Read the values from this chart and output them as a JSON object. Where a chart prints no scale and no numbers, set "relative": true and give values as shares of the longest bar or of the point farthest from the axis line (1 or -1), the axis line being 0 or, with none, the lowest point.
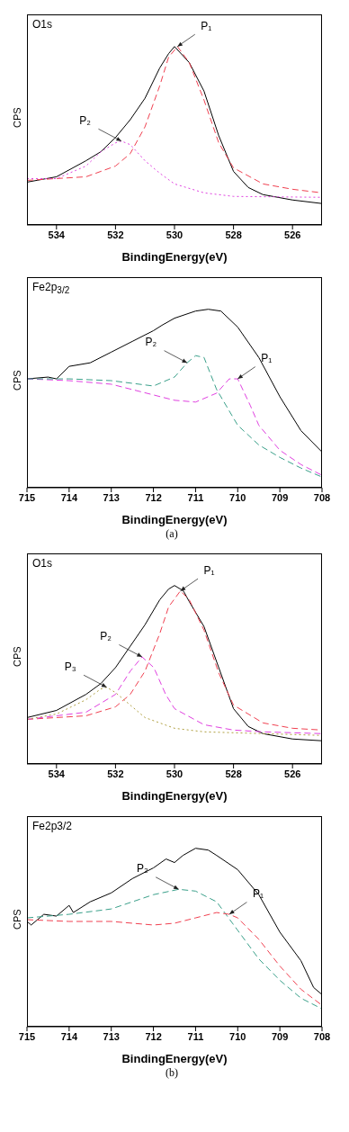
{
  "chart_data": [
    {
      "type": "line",
      "title": "O1s",
      "xlabel": "BindingEnergy(eV)",
      "ylabel": "CPS",
      "relative": true,
      "xlim": [
        535,
        525
      ],
      "xticks": [
        534,
        532,
        530,
        528,
        526
      ],
      "marker": "none",
      "legend": false,
      "grid": false,
      "series": [
        {
          "color": "#000000",
          "line_style": "solid",
          "x": [
            535,
            534,
            533,
            532.5,
            532,
            531.5,
            531,
            530.5,
            530.2,
            530,
            529.5,
            529,
            528.5,
            528,
            527.5,
            527,
            526,
            525
          ],
          "values": [
            0.24,
            0.27,
            0.36,
            0.41,
            0.49,
            0.59,
            0.71,
            0.88,
            0.96,
            1.0,
            0.91,
            0.75,
            0.5,
            0.3,
            0.21,
            0.17,
            0.14,
            0.12
          ]
        },
        {
          "color": "#f04050",
          "line_style": "dashed",
          "x": [
            535,
            533,
            532,
            531.5,
            531,
            530.5,
            530.2,
            529.9,
            529.5,
            529,
            528.5,
            528,
            527,
            526,
            525
          ],
          "values": [
            0.25,
            0.27,
            0.33,
            0.4,
            0.55,
            0.78,
            0.94,
            1.0,
            0.91,
            0.7,
            0.46,
            0.32,
            0.23,
            0.2,
            0.18
          ]
        },
        {
          "color": "#e040e0",
          "line_style": "dotted",
          "x": [
            535,
            534,
            533,
            532.5,
            532,
            531.8,
            531.5,
            531,
            530.5,
            530,
            529,
            528,
            525
          ],
          "values": [
            0.26,
            0.26,
            0.33,
            0.41,
            0.46,
            0.47,
            0.45,
            0.36,
            0.29,
            0.23,
            0.18,
            0.16,
            0.155
          ]
        }
      ],
      "annotations": [
        {
          "text": "P₁",
          "x": 529.9,
          "y": 1.0
        },
        {
          "text": "P₂",
          "x": 531.8,
          "y": 0.47
        }
      ]
    },
    {
      "type": "line",
      "title": "Fe2p$_{3/2}$",
      "xlabel": "BindingEnergy(eV)",
      "ylabel": "CPS",
      "relative": true,
      "xlim": [
        715,
        708
      ],
      "xticks": [
        715,
        714,
        713,
        712,
        711,
        710,
        709,
        708
      ],
      "marker": "none",
      "legend": false,
      "grid": false,
      "series": [
        {
          "color": "#000000",
          "line_style": "solid",
          "x": [
            715,
            714.5,
            714.3,
            714,
            713.5,
            713,
            712.5,
            712,
            711.8,
            711.5,
            711,
            710.7,
            710.4,
            710,
            709.5,
            709,
            708.5,
            708
          ],
          "values": [
            0.61,
            0.62,
            0.61,
            0.68,
            0.7,
            0.76,
            0.82,
            0.88,
            0.91,
            0.95,
            0.99,
            1.0,
            0.99,
            0.9,
            0.73,
            0.51,
            0.32,
            0.2
          ]
        },
        {
          "color": "#e040e0",
          "line_style": "dashed",
          "x": [
            715,
            714,
            713,
            712,
            711.5,
            711,
            710.5,
            710.2,
            710,
            709.7,
            709.5,
            709,
            708.5,
            708
          ],
          "values": [
            0.61,
            0.6,
            0.58,
            0.52,
            0.49,
            0.48,
            0.53,
            0.61,
            0.61,
            0.46,
            0.35,
            0.21,
            0.13,
            0.07
          ]
        },
        {
          "color": "#3aa08a",
          "line_style": "dashed",
          "x": [
            715,
            714,
            713,
            712,
            711.5,
            711.2,
            711,
            710.8,
            710.5,
            710,
            709.5,
            709,
            708.5,
            708
          ],
          "values": [
            0.61,
            0.61,
            0.6,
            0.57,
            0.62,
            0.7,
            0.74,
            0.73,
            0.55,
            0.35,
            0.24,
            0.17,
            0.11,
            0.06
          ]
        }
      ],
      "annotations": [
        {
          "text": "P₁",
          "x": 710,
          "y": 0.61
        },
        {
          "text": "P₂",
          "x": 711.2,
          "y": 0.7
        },
        "(a)"
      ]
    },
    {
      "type": "line",
      "title": "O1s",
      "xlabel": "BindingEnergy(eV)",
      "ylabel": "CPS",
      "relative": true,
      "xlim": [
        535,
        525
      ],
      "xticks": [
        534,
        532,
        530,
        528,
        526
      ],
      "marker": "none",
      "legend": false,
      "grid": false,
      "series": [
        {
          "color": "#000000",
          "line_style": "solid",
          "x": [
            535,
            534,
            533,
            532.5,
            532,
            531.5,
            531,
            530.5,
            530.2,
            530,
            529.7,
            529.5,
            529,
            528.5,
            528,
            527.5,
            527,
            526,
            525
          ],
          "values": [
            0.26,
            0.3,
            0.39,
            0.45,
            0.54,
            0.66,
            0.78,
            0.92,
            0.98,
            1.0,
            0.97,
            0.91,
            0.77,
            0.54,
            0.31,
            0.21,
            0.17,
            0.14,
            0.13
          ]
        },
        {
          "color": "#f04050",
          "line_style": "dashed",
          "x": [
            535,
            533,
            532,
            531.5,
            531,
            530.5,
            530.2,
            529.8,
            529.5,
            529,
            528.5,
            528,
            527,
            526,
            525
          ],
          "values": [
            0.25,
            0.27,
            0.32,
            0.39,
            0.52,
            0.73,
            0.88,
            0.97,
            0.92,
            0.75,
            0.51,
            0.33,
            0.23,
            0.2,
            0.19
          ]
        },
        {
          "color": "#e040e0",
          "line_style": "dashed",
          "x": [
            535,
            534,
            533,
            532,
            531.5,
            531.1,
            530.7,
            530.3,
            530,
            529,
            528,
            527,
            525
          ],
          "values": [
            0.25,
            0.27,
            0.29,
            0.39,
            0.52,
            0.6,
            0.54,
            0.39,
            0.31,
            0.22,
            0.19,
            0.18,
            0.17
          ]
        },
        {
          "color": "#b0a040",
          "line_style": "dotted",
          "x": [
            535,
            534,
            533,
            532.5,
            532.3,
            532,
            531.5,
            531,
            530,
            529,
            527,
            525
          ],
          "values": [
            0.25,
            0.28,
            0.36,
            0.42,
            0.43,
            0.4,
            0.33,
            0.26,
            0.2,
            0.18,
            0.17,
            0.16
          ]
        }
      ],
      "annotations": [
        {
          "text": "P₁",
          "x": 529.8,
          "y": 0.97
        },
        {
          "text": "P₂",
          "x": 531.1,
          "y": 0.6
        },
        {
          "text": "P₃",
          "x": 532.3,
          "y": 0.43
        }
      ]
    },
    {
      "type": "line",
      "title": "Fe2p3/2",
      "xlabel": "BindingEnergy(eV)",
      "ylabel": "CPS",
      "relative": true,
      "xlim": [
        715,
        708
      ],
      "xticks": [
        715,
        714,
        713,
        712,
        711,
        710,
        709,
        708
      ],
      "marker": "none",
      "legend": false,
      "grid": false,
      "series": [
        {
          "color": "#000000",
          "line_style": "solid",
          "x": [
            715,
            714.9,
            714.6,
            714.3,
            714,
            713.9,
            713.5,
            713,
            712.5,
            712,
            711.7,
            711.5,
            711.3,
            711,
            710.7,
            710.5,
            710,
            709.5,
            709,
            708.5,
            708.2,
            708
          ],
          "values": [
            0.59,
            0.57,
            0.63,
            0.62,
            0.68,
            0.64,
            0.7,
            0.75,
            0.83,
            0.89,
            0.94,
            0.92,
            0.96,
            1.0,
            0.99,
            0.96,
            0.88,
            0.74,
            0.53,
            0.37,
            0.22,
            0.18
          ]
        },
        {
          "color": "#3aa08a",
          "line_style": "dashed",
          "x": [
            715,
            714,
            713,
            712,
            711.4,
            711,
            710.5,
            710,
            709.5,
            709,
            708.5,
            708
          ],
          "values": [
            0.61,
            0.63,
            0.66,
            0.74,
            0.77,
            0.76,
            0.7,
            0.54,
            0.38,
            0.26,
            0.16,
            0.1
          ]
        },
        {
          "color": "#f04050",
          "line_style": "dashed",
          "x": [
            715,
            714,
            713,
            712,
            711.5,
            711,
            710.5,
            710.2,
            710,
            709.5,
            709,
            708.5,
            708
          ],
          "values": [
            0.6,
            0.59,
            0.59,
            0.57,
            0.58,
            0.61,
            0.64,
            0.63,
            0.61,
            0.49,
            0.34,
            0.21,
            0.12
          ]
        }
      ],
      "annotations": [
        {
          "text": "P₁",
          "x": 710.2,
          "y": 0.63
        },
        {
          "text": "P₂",
          "x": 711.4,
          "y": 0.77
        },
        "(b)"
      ]
    }
  ]
}
